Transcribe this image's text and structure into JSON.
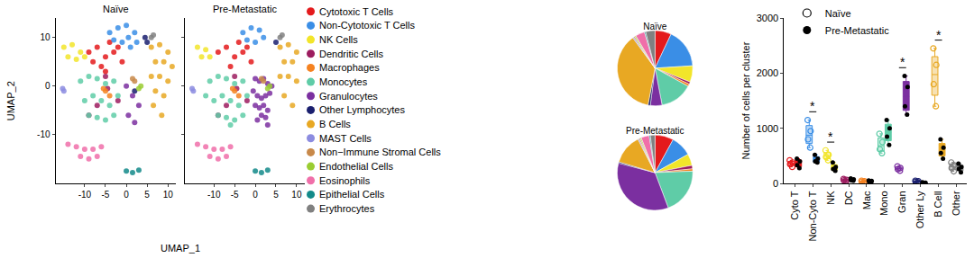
{
  "chart_data": [
    {
      "type": "scatter",
      "panels": [
        "Naïve",
        "Pre-Metastatic"
      ],
      "x_label": "UMAP_1",
      "y_label": "UMAP_2",
      "xlim": [
        -17,
        12
      ],
      "xticks": [
        -10,
        -5,
        0,
        5,
        10
      ],
      "ylim": [
        -20,
        14
      ],
      "yticks": [
        -10,
        0,
        10
      ],
      "series": [
        {
          "name": "Cytotoxic T Cells",
          "color": "#e41a1c",
          "points": [
            {
              "x": [
                -9,
                -7,
                -5,
                -3,
                -1,
                -6,
                -4,
                -8,
                -2,
                -5
              ],
              "y": [
                7,
                8,
                6,
                7,
                5,
                4,
                9,
                5,
                8,
                3
              ]
            },
            {
              "x": [
                -9,
                -7,
                -5,
                -3,
                -1,
                -6,
                -4,
                -2
              ],
              "y": [
                7,
                8,
                6,
                7,
                5,
                4,
                9,
                8
              ]
            }
          ]
        },
        {
          "name": "Non-Cytotoxic T Cells",
          "color": "#3a8ee6",
          "points": [
            {
              "x": [
                -4,
                -2,
                0,
                2,
                -1,
                1,
                -3,
                0.5,
                2.5
              ],
              "y": [
                11,
                12,
                12.5,
                11,
                9,
                8,
                9.5,
                10,
                9
              ]
            },
            {
              "x": [
                -3,
                -1,
                1,
                0,
                2,
                -2
              ],
              "y": [
                11,
                12,
                11.5,
                9,
                10,
                9.5
              ]
            }
          ]
        },
        {
          "name": "NK Cells",
          "color": "#f2e52a",
          "points": [
            {
              "x": [
                -15,
                -13,
                -11,
                -14,
                -12,
                -10
              ],
              "y": [
                8,
                8.5,
                7,
                6,
                5.5,
                6
              ]
            },
            {
              "x": [
                -14,
                -12,
                -11,
                -13
              ],
              "y": [
                8,
                7.5,
                6,
                6
              ]
            }
          ]
        },
        {
          "name": "Dendritic Cells",
          "color": "#9c1c5f",
          "points": [
            {
              "x": [
                -4.5,
                -7,
                -2,
                -5,
                -9
              ],
              "y": [
                -0.5,
                -4,
                -3,
                2,
                -6
              ]
            },
            {
              "x": [
                -4.5,
                -7,
                -2,
                -5,
                -9
              ],
              "y": [
                -0.5,
                -4,
                -3,
                2,
                -6
              ]
            }
          ]
        },
        {
          "name": "Macrophages",
          "color": "#f58220",
          "points": [
            {
              "x": [
                -5,
                -4,
                -5.5
              ],
              "y": [
                -1,
                -2,
                -0.5
              ]
            },
            {
              "x": [
                -5,
                -4,
                -5.5
              ],
              "y": [
                -1,
                -2,
                -0.5
              ]
            }
          ]
        },
        {
          "name": "Monocytes",
          "color": "#5fcca7",
          "points": [
            {
              "x": [
                -11,
                -9,
                -7,
                -5,
                -3,
                -2,
                -10,
                -8,
                -6,
                -4,
                -9,
                -7,
                -5,
                -3
              ],
              "y": [
                1,
                2,
                1.5,
                0.5,
                1,
                -2,
                -3,
                -2,
                -3,
                -4,
                -6,
                -6.5,
                -7,
                -6
              ]
            },
            {
              "x": [
                -11,
                -9,
                -7,
                -5,
                -3,
                -2,
                -10,
                -8,
                -6,
                -4,
                -9,
                -7,
                -5,
                -3,
                -12,
                -6
              ],
              "y": [
                1,
                2,
                1.5,
                0.5,
                1,
                -2,
                -3,
                -2,
                -3,
                -4,
                -6,
                -6.5,
                -7,
                -6,
                -2,
                -8
              ]
            }
          ]
        },
        {
          "name": "Granulocytes",
          "color": "#7b2fa0",
          "points": [
            {
              "x": [
                0,
                1.5,
                3,
                0.5,
                2
              ],
              "y": [
                0,
                -2,
                -4,
                -6,
                -7.5
              ]
            },
            {
              "x": [
                0,
                1,
                2,
                3,
                4,
                -0.5,
                0.5,
                1.5,
                2.5,
                3.5,
                0,
                1,
                2,
                3,
                1.5,
                2.5,
                0.5,
                3
              ],
              "y": [
                1.5,
                1,
                1.5,
                0.5,
                0,
                -1,
                -2,
                -2.5,
                -2,
                -1.5,
                -4,
                -4.5,
                -4,
                -5,
                -6,
                -6.5,
                -7,
                -8
              ]
            }
          ]
        },
        {
          "name": "Other Lymphocytes",
          "color": "#1a1f6e",
          "points": [
            {
              "x": [
                5,
                4.5,
                2
              ],
              "y": [
                9,
                10,
                -1
              ]
            },
            {
              "x": [
                5
              ],
              "y": [
                9
              ]
            }
          ]
        },
        {
          "name": "B Cells",
          "color": "#e8a823",
          "points": [
            {
              "x": [
                6,
                8,
                10,
                7,
                9,
                11,
                6,
                8,
                10,
                7,
                9,
                6.5,
                8.5
              ],
              "y": [
                8,
                8.5,
                7,
                5,
                5,
                4,
                2,
                2,
                1,
                -1,
                -2,
                -4,
                -6
              ]
            },
            {
              "x": [
                6,
                8,
                10,
                7,
                9,
                6,
                8,
                10,
                7,
                9
              ],
              "y": [
                8,
                8.5,
                7,
                5,
                5,
                2,
                2,
                1,
                -2,
                -4
              ]
            }
          ]
        },
        {
          "name": "MAST Cells",
          "color": "#8c8ce0",
          "points": [
            {
              "x": [
                -15,
                -15.3
              ],
              "y": [
                -1,
                -0.5
              ]
            },
            {
              "x": [
                -15,
                -15.3
              ],
              "y": [
                -1,
                -0.5
              ]
            }
          ]
        },
        {
          "name": "Non−Immune Stromal Cells",
          "color": "#c8894a",
          "points": [
            {
              "x": [
                2,
                1.5
              ],
              "y": [
                1,
                1.5
              ]
            },
            {
              "x": [
                2,
                1.5
              ],
              "y": [
                1,
                1.5
              ]
            }
          ]
        },
        {
          "name": "Endothelial Cells",
          "color": "#9acd32",
          "points": [
            {
              "x": [
                3,
                3.5
              ],
              "y": [
                -0.5,
                0
              ]
            },
            {
              "x": [
                3,
                3.5
              ],
              "y": [
                -0.5,
                0
              ]
            }
          ]
        },
        {
          "name": "Eosinophils",
          "color": "#f06fa9",
          "points": [
            {
              "x": [
                -14,
                -12,
                -10,
                -8,
                -6,
                -11,
                -9,
                -7
              ],
              "y": [
                -12,
                -12.5,
                -13,
                -13,
                -12.5,
                -14.5,
                -15,
                -14.5
              ]
            },
            {
              "x": [
                -14,
                -12,
                -10,
                -8,
                -6,
                -11,
                -9,
                -7
              ],
              "y": [
                -12,
                -12.5,
                -13,
                -13,
                -12.5,
                -14.5,
                -15,
                -14.5
              ]
            }
          ]
        },
        {
          "name": "Epithelial Cells",
          "color": "#138a8a",
          "points": [
            {
              "x": [
                0,
                1.5,
                3
              ],
              "y": [
                -17.5,
                -17.8,
                -17.3
              ]
            },
            {
              "x": [
                0,
                1.5,
                3
              ],
              "y": [
                -17.5,
                -17.8,
                -17.3
              ]
            }
          ]
        },
        {
          "name": "Erythrocytes",
          "color": "#808080",
          "points": [
            {
              "x": [
                6,
                6.5
              ],
              "y": [
                10,
                10.5
              ]
            },
            {
              "x": [
                6,
                6.5
              ],
              "y": [
                10,
                10.5
              ]
            }
          ]
        }
      ]
    },
    {
      "type": "pie",
      "categories": [
        "Cytotoxic T Cells",
        "Non-Cytotoxic T Cells",
        "NK Cells",
        "Dendritic Cells",
        "Macrophages",
        "Monocytes",
        "Granulocytes",
        "Other Lymphocytes",
        "B Cells",
        "MAST Cells",
        "Non−Immune Stromal Cells",
        "Endothelial Cells",
        "Eosinophils",
        "Epithelial Cells",
        "Erythrocytes"
      ],
      "colors": [
        "#e41a1c",
        "#3a8ee6",
        "#f2e52a",
        "#9c1c5f",
        "#f58220",
        "#5fcca7",
        "#7b2fa0",
        "#1a1f6e",
        "#e8a823",
        "#8c8ce0",
        "#c8894a",
        "#9acd32",
        "#f06fa9",
        "#138a8a",
        "#808080"
      ],
      "panels": [
        {
          "title": "Naïve",
          "values": [
            7,
            17,
            7,
            1,
            1,
            14,
            5,
            1,
            37,
            0.5,
            0.5,
            0.5,
            4,
            0.5,
            4
          ]
        },
        {
          "title": "Pre-Metastatic",
          "values": [
            8,
            9,
            5,
            1.5,
            1,
            20,
            35,
            0.5,
            13,
            0.5,
            0.5,
            0.5,
            3.5,
            0.5,
            2
          ]
        }
      ]
    },
    {
      "type": "box",
      "y_label": "Number of cells per cluster",
      "ylim": [
        0,
        3000
      ],
      "yticks": [
        0,
        1000,
        2000,
        3000
      ],
      "legend": "upper left",
      "categories": [
        "Cyto T",
        "Non-Cyto T",
        "NK",
        "DC",
        "Mac",
        "Mono",
        "Gran",
        "Other Ly",
        "B Cell",
        "Other"
      ],
      "colors": [
        "#e41a1c",
        "#3a8ee6",
        "#f2e52a",
        "#9c1c5f",
        "#f58220",
        "#5fcca7",
        "#7b2fa0",
        "#1a1f6e",
        "#e8a823",
        "#808080"
      ],
      "series": [
        {
          "name": "Naïve",
          "marker": "open",
          "values": [
            [
              300,
              350,
              380,
              420
            ],
            [
              650,
              800,
              950,
              1150
            ],
            [
              420,
              480,
              520,
              600
            ],
            [
              40,
              55,
              65,
              80
            ],
            [
              20,
              30,
              40,
              50
            ],
            [
              550,
              620,
              750,
              900
            ],
            [
              230,
              260,
              280,
              310
            ],
            [
              20,
              30,
              40,
              50
            ],
            [
              1400,
              1800,
              2150,
              2450
            ],
            [
              220,
              280,
              330,
              380
            ]
          ]
        },
        {
          "name": "Pre-Metastatic",
          "marker": "filled",
          "values": [
            [
              280,
              330,
              400,
              450
            ],
            [
              380,
              400,
              450,
              520
            ],
            [
              230,
              260,
              300,
              380
            ],
            [
              50,
              60,
              75,
              90
            ],
            [
              25,
              35,
              45,
              55
            ],
            [
              700,
              850,
              1000,
              1150
            ],
            [
              1250,
              1400,
              1750,
              1950
            ],
            [
              5,
              10,
              15,
              20
            ],
            [
              450,
              550,
              650,
              800
            ],
            [
              200,
              260,
              300,
              360
            ]
          ]
        }
      ],
      "significance": [
        {
          "category": "Non-Cyto T",
          "label": "*"
        },
        {
          "category": "NK",
          "label": "*"
        },
        {
          "category": "Gran",
          "label": "*"
        },
        {
          "category": "B Cell",
          "label": "*"
        }
      ]
    }
  ]
}
